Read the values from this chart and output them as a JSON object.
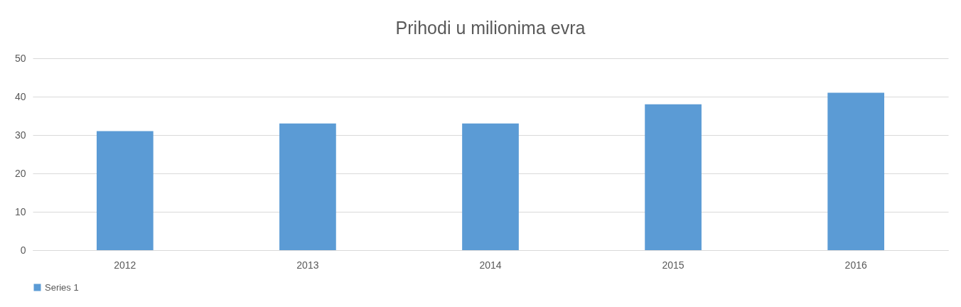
{
  "chart_data": {
    "type": "bar",
    "title": "Prihodi u milionima evra",
    "categories": [
      "2012",
      "2013",
      "2014",
      "2015",
      "2016"
    ],
    "series": [
      {
        "name": "Series 1",
        "color": "#5b9bd5",
        "values": [
          31,
          33,
          33,
          38,
          41
        ]
      }
    ],
    "ylim": [
      0,
      50
    ],
    "yticks": [
      0,
      10,
      20,
      30,
      40,
      50
    ],
    "grid": "y",
    "legend": "bottom"
  }
}
